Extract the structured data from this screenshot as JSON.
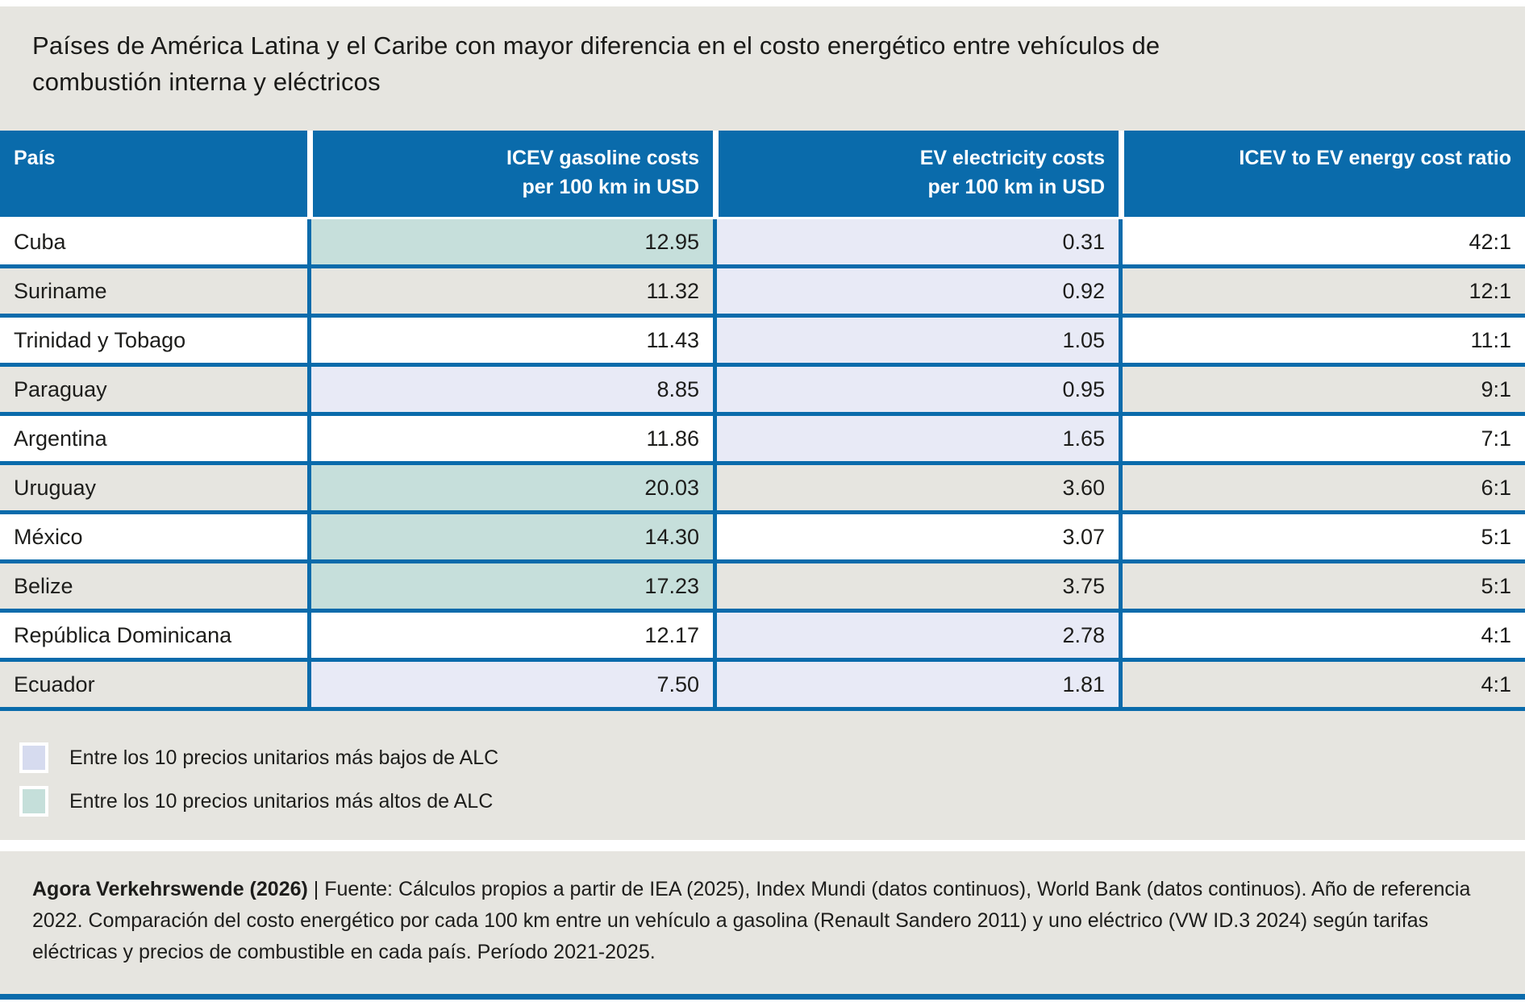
{
  "title": "Países de América Latina y el Caribe con mayor diferencia en el costo energético entre vehículos de combustión interna y eléctricos",
  "colors": {
    "header_blue": "#0a6bab",
    "row_stripe_gray": "#e6e5e0",
    "highlight_low": "#e8eaf6",
    "highlight_high": "#c6dfdb",
    "legend_low": "#d6dbef",
    "legend_high": "#c5dfda"
  },
  "table": {
    "columns": [
      {
        "label": "País"
      },
      {
        "line1": "ICEV gasoline costs",
        "line2": "per 100 km in USD"
      },
      {
        "line1": "EV electricity costs",
        "line2": "per 100 km in USD"
      },
      {
        "label": "ICEV to EV energy cost ratio"
      }
    ],
    "rows": [
      {
        "country": "Cuba",
        "icev": "12.95",
        "icev_hl": "high",
        "ev": "0.31",
        "ev_hl": "low",
        "ratio": "42:1"
      },
      {
        "country": "Suriname",
        "icev": "11.32",
        "icev_hl": null,
        "ev": "0.92",
        "ev_hl": "low",
        "ratio": "12:1"
      },
      {
        "country": "Trinidad y Tobago",
        "icev": "11.43",
        "icev_hl": null,
        "ev": "1.05",
        "ev_hl": "low",
        "ratio": "11:1"
      },
      {
        "country": "Paraguay",
        "icev": "8.85",
        "icev_hl": "low",
        "ev": "0.95",
        "ev_hl": "low",
        "ratio": "9:1"
      },
      {
        "country": "Argentina",
        "icev": "11.86",
        "icev_hl": null,
        "ev": "1.65",
        "ev_hl": "low",
        "ratio": "7:1"
      },
      {
        "country": "Uruguay",
        "icev": "20.03",
        "icev_hl": "high",
        "ev": "3.60",
        "ev_hl": null,
        "ratio": "6:1"
      },
      {
        "country": "México",
        "icev": "14.30",
        "icev_hl": "high",
        "ev": "3.07",
        "ev_hl": null,
        "ratio": "5:1"
      },
      {
        "country": "Belize",
        "icev": "17.23",
        "icev_hl": "high",
        "ev": "3.75",
        "ev_hl": null,
        "ratio": "5:1"
      },
      {
        "country": "República Dominicana",
        "icev": "12.17",
        "icev_hl": null,
        "ev": "2.78",
        "ev_hl": "low",
        "ratio": "4:1"
      },
      {
        "country": "Ecuador",
        "icev": "7.50",
        "icev_hl": "low",
        "ev": "1.81",
        "ev_hl": "low",
        "ratio": "4:1"
      }
    ]
  },
  "legend": [
    {
      "key": "low",
      "label": "Entre los 10 precios unitarios más bajos de ALC"
    },
    {
      "key": "high",
      "label": "Entre los 10 precios unitarios más altos de ALC"
    }
  ],
  "footer": {
    "source_bold": "Agora Verkehrswende (2026)",
    "source_rest": " | Fuente: Cálculos propios a partir de IEA (2025), Index Mundi (datos continuos), World Bank (datos continuos). Año de referencia 2022. Comparación del costo energético por cada 100 km entre un vehículo a gasolina (Renault Sandero 2011) y uno eléctrico (VW ID.3 2024) según tarifas eléctricas y precios de combustible en cada país. Período 2021-2025."
  },
  "chart_data": {
    "type": "table",
    "title": "Países de América Latina y el Caribe con mayor diferencia en el costo energético entre vehículos de combustión interna y eléctricos",
    "categories": [
      "Cuba",
      "Suriname",
      "Trinidad y Tobago",
      "Paraguay",
      "Argentina",
      "Uruguay",
      "México",
      "Belize",
      "República Dominicana",
      "Ecuador"
    ],
    "series": [
      {
        "name": "ICEV gasoline costs per 100 km in USD",
        "values": [
          12.95,
          11.32,
          11.43,
          8.85,
          11.86,
          20.03,
          14.3,
          17.23,
          12.17,
          7.5
        ]
      },
      {
        "name": "EV electricity costs per 100 km in USD",
        "values": [
          0.31,
          0.92,
          1.05,
          0.95,
          1.65,
          3.6,
          3.07,
          3.75,
          2.78,
          1.81
        ]
      },
      {
        "name": "ICEV to EV energy cost ratio",
        "values": [
          "42:1",
          "12:1",
          "11:1",
          "9:1",
          "7:1",
          "6:1",
          "5:1",
          "5:1",
          "4:1",
          "4:1"
        ]
      }
    ],
    "annotations": [
      "Entre los 10 precios unitarios más bajos de ALC (celdas lila)",
      "Entre los 10 precios unitarios más altos de ALC (celdas verde azulado)"
    ]
  }
}
